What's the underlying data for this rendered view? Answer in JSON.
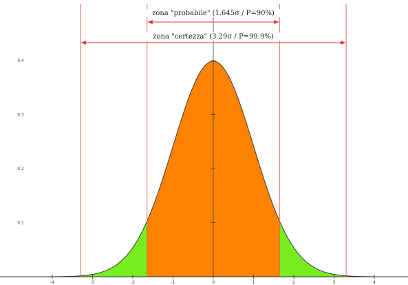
{
  "chart_data": {
    "type": "area",
    "title": "",
    "xlabel": "",
    "ylabel": "",
    "xlim": [
      -4,
      4
    ],
    "ylim": [
      0,
      0.45
    ],
    "x_ticks": [
      "-4",
      "-3",
      "-2",
      "-1",
      "0",
      "1",
      "2",
      "3",
      "4"
    ],
    "y_ticks": [
      "0.1",
      "0.2",
      "0.3",
      "0.4"
    ],
    "x_tick_values": [
      -4,
      -3,
      -2,
      -1,
      0,
      1,
      2,
      3,
      4
    ],
    "y_tick_values": [
      0.1,
      0.2,
      0.3,
      0.4
    ],
    "series": [
      {
        "distribution": "standard normal",
        "x": [
          -3.3,
          -3.0,
          -2.5,
          -2.0,
          -1.645,
          -1.5,
          -1.0,
          -0.5,
          0,
          0.5,
          1.0,
          1.5,
          1.645,
          2.0,
          2.5,
          3.0,
          3.3
        ],
        "y": [
          0.0017,
          0.0044,
          0.0175,
          0.054,
          0.1031,
          0.1295,
          0.242,
          0.3521,
          0.3989,
          0.3521,
          0.242,
          0.1295,
          0.1031,
          0.054,
          0.0175,
          0.0044,
          0.0017
        ]
      }
    ],
    "regions": [
      {
        "from": -1.645,
        "to": 1.645,
        "color": "#ff8200"
      },
      {
        "from": -3.3,
        "to": -1.645,
        "color": "#77ee22"
      },
      {
        "from": 1.645,
        "to": 3.3,
        "color": "#77ee22"
      }
    ],
    "vertical_lines": [
      -3.3,
      -1.645,
      1.645,
      3.3
    ],
    "annotations": [
      {
        "text": "zona \"probabile\" (1.645σ / P=90%)",
        "from": -1.645,
        "to": 1.645
      },
      {
        "text": "zona \"certezza\" (3.29σ / P=99.9%)",
        "from": -3.3,
        "to": 3.3
      }
    ],
    "colors": {
      "central": "#ff8200",
      "tails": "#77ee22",
      "limit_lines": "#e05a4a",
      "arrows": "#d93b30"
    }
  }
}
